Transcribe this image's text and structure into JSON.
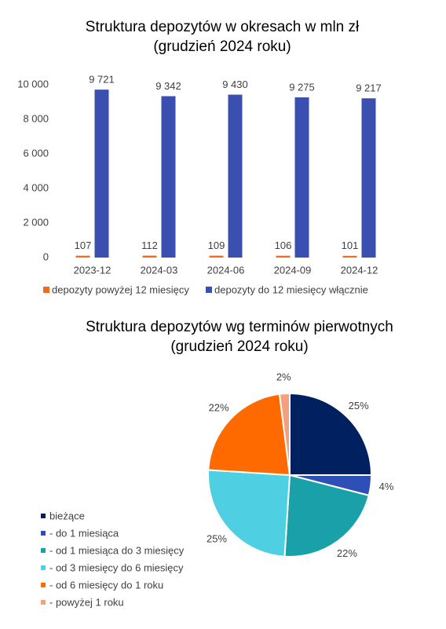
{
  "chart_data": [
    {
      "type": "bar",
      "title": "Struktura depozytów w okresach w mln zł",
      "subtitle": "(grudzień 2024 roku)",
      "categories": [
        "2023-12",
        "2024-03",
        "2024-06",
        "2024-09",
        "2024-12"
      ],
      "series": [
        {
          "name": "depozyty powyżej 12 miesięcy",
          "color": "#f26b1d",
          "values": [
            107,
            112,
            109,
            106,
            101
          ]
        },
        {
          "name": "depozyty do 12 miesięcy włącznie",
          "color": "#3a4fb0",
          "values": [
            9721,
            9342,
            9430,
            9275,
            9217
          ],
          "value_labels": [
            "9 721",
            "9 342",
            "9 430",
            "9 275",
            "9 217"
          ]
        }
      ],
      "ylim": [
        0,
        10000
      ],
      "yticks": [
        0,
        {
          "value": 2000,
          "label": "2 000"
        },
        {
          "value": 4000,
          "label": "4 000"
        },
        {
          "value": 6000,
          "label": "6 000"
        },
        {
          "value": 8000,
          "label": "8 000"
        },
        {
          "value": 10000,
          "label": "10 000"
        }
      ],
      "legend": "bottom"
    },
    {
      "type": "pie",
      "title": "Struktura depozytów wg terminów pierwotnych",
      "subtitle": "(grudzień 2024 roku)",
      "categories": [
        "bieżące",
        "- do 1 miesiąca",
        "- od 1 miesiąca do 3 miesięcy",
        "- od 3 miesięcy do 6 miesięcy",
        "- od 6 miesięcy do 1 roku",
        "- powyżej 1 roku"
      ],
      "values": [
        25,
        4,
        22,
        25,
        22,
        2
      ],
      "value_labels": [
        "25%",
        "4%",
        "22%",
        "25%",
        "22%",
        "2%"
      ],
      "colors": [
        "#002060",
        "#2e4fb5",
        "#1aa0a8",
        "#4fd0e2",
        "#ff6a00",
        "#f4a07e"
      ],
      "legend": "left"
    }
  ]
}
